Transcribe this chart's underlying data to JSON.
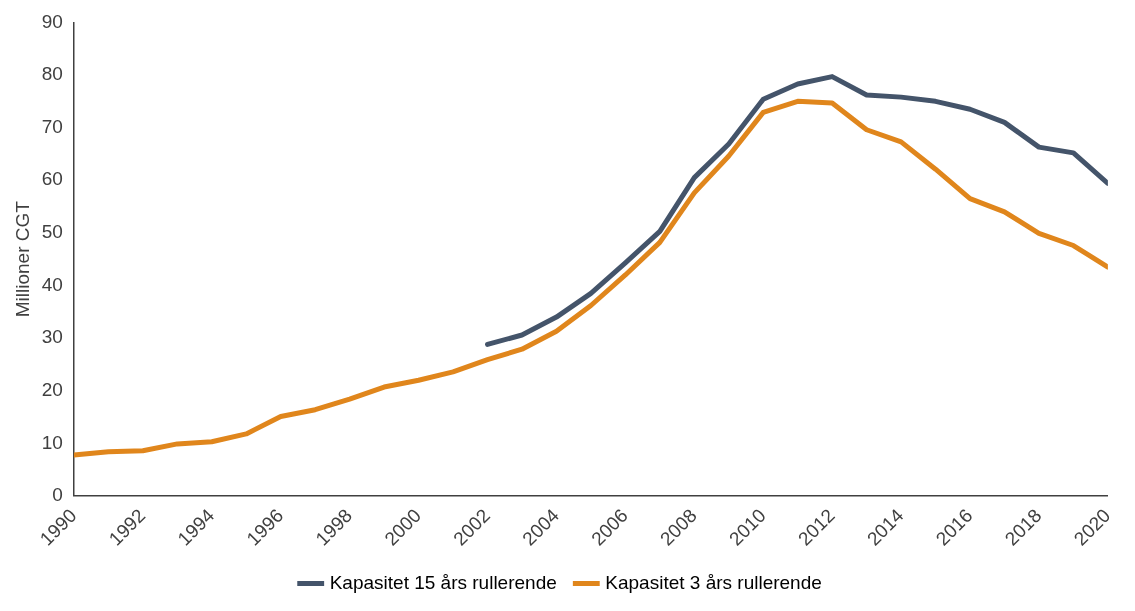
{
  "chart_data": {
    "type": "line",
    "ylabel": "Millioner CGT",
    "xlim": [
      1990,
      2020
    ],
    "xticks": [
      1990,
      1992,
      1994,
      1996,
      1998,
      2000,
      2002,
      2004,
      2006,
      2008,
      2010,
      2012,
      2014,
      2016,
      2018,
      2020
    ],
    "ylim": [
      0,
      90
    ],
    "yticks": [
      0,
      10,
      20,
      30,
      40,
      50,
      60,
      70,
      80,
      90
    ],
    "grid": false,
    "legend": "bottom",
    "marker": "none",
    "line_style": "solid",
    "series": [
      {
        "name": "Kapasitet 15 års rullerende",
        "color": "#44546a",
        "x": [
          2002,
          2003,
          2004,
          2005,
          2006,
          2007,
          2008,
          2009,
          2010,
          2011,
          2012,
          2013,
          2014,
          2015,
          2016,
          2017,
          2018,
          2019,
          2020
        ],
        "values": [
          28.8,
          30.6,
          34.0,
          38.5,
          44.3,
          50.3,
          60.5,
          66.9,
          75.4,
          78.3,
          79.7,
          76.2,
          75.8,
          75.0,
          73.5,
          71.0,
          66.3,
          65.2,
          59.4
        ]
      },
      {
        "name": "Kapasitet 3 års rullerende",
        "color": "#e0861c",
        "x": [
          1990,
          1991,
          1992,
          1993,
          1994,
          1995,
          1996,
          1997,
          1998,
          1999,
          2000,
          2001,
          2002,
          2003,
          2004,
          2005,
          2006,
          2007,
          2008,
          2009,
          2010,
          2011,
          2012,
          2013,
          2014,
          2015,
          2016,
          2017,
          2018,
          2019,
          2020
        ],
        "values": [
          7.8,
          8.4,
          8.6,
          9.9,
          10.3,
          11.8,
          15.1,
          16.4,
          18.4,
          20.7,
          22.0,
          23.6,
          25.9,
          27.9,
          31.3,
          36.2,
          42.0,
          48.2,
          57.6,
          64.6,
          72.9,
          75.0,
          74.7,
          69.6,
          67.3,
          62.1,
          56.5,
          54.0,
          49.9,
          47.6,
          43.5
        ]
      }
    ]
  }
}
